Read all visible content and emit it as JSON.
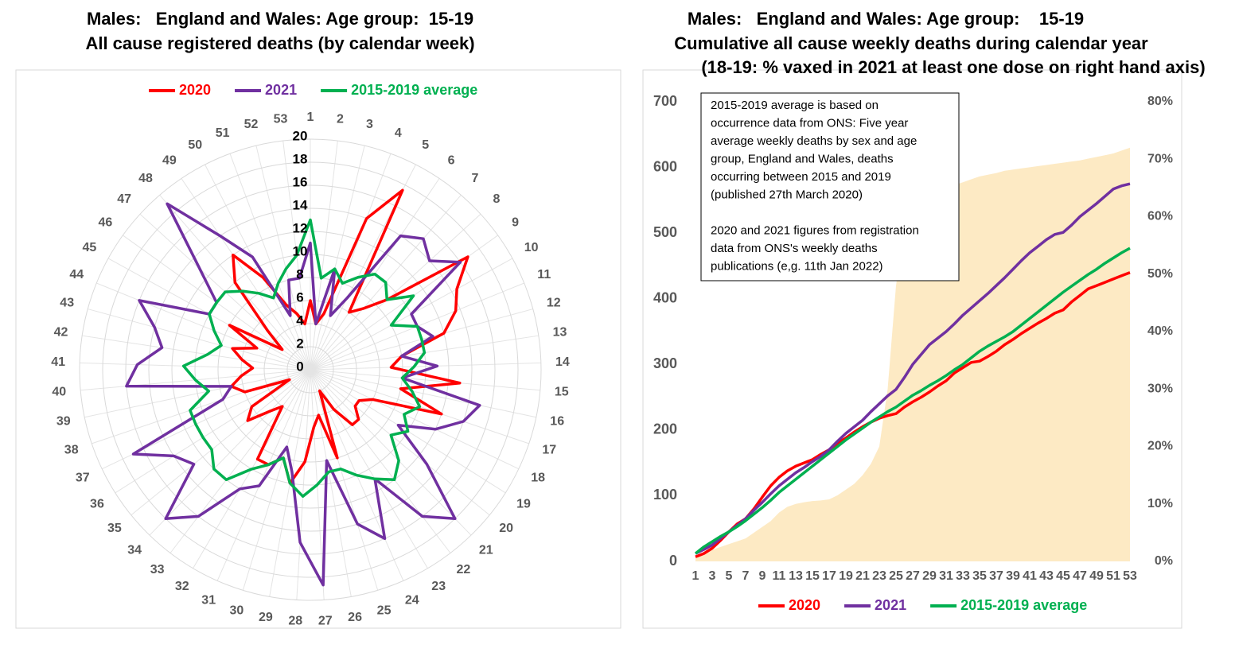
{
  "chart_data": [
    {
      "type": "radar",
      "title_lines": [
        "Males:   England and Wales: Age group:  15-19",
        "All cause registered deaths (by calendar week)"
      ],
      "categories": [
        1,
        2,
        3,
        4,
        5,
        6,
        7,
        8,
        9,
        10,
        11,
        12,
        13,
        14,
        15,
        16,
        17,
        18,
        19,
        20,
        21,
        22,
        23,
        24,
        25,
        26,
        27,
        28,
        29,
        30,
        31,
        32,
        33,
        34,
        35,
        36,
        37,
        38,
        39,
        40,
        41,
        42,
        43,
        44,
        45,
        46,
        47,
        48,
        49,
        50,
        51,
        52,
        53
      ],
      "rlim": [
        0,
        20
      ],
      "rticks": [
        0,
        2,
        4,
        6,
        8,
        10,
        12,
        14,
        16,
        18,
        20
      ],
      "grid": true,
      "series": [
        {
          "name": "2020",
          "color": "#ff0000",
          "values": [
            6,
            4,
            5,
            14,
            17.5,
            6,
            7,
            9,
            16.8,
            14.5,
            13.6,
            12,
            8,
            7,
            13,
            8,
            12,
            6,
            5,
            5,
            6,
            6,
            4,
            2,
            8,
            4,
            5,
            8,
            10,
            8,
            9,
            9,
            4,
            5,
            7,
            6,
            2,
            6,
            7,
            6,
            5,
            6,
            7,
            5,
            8,
            3,
            5,
            10,
            12,
            9,
            6,
            5,
            4
          ]
        },
        {
          "name": "2021",
          "color": "#7030a0",
          "values": [
            11,
            4,
            9,
            5,
            7,
            14,
            15,
            14,
            16,
            10,
            10,
            11,
            8,
            11,
            8,
            15,
            14,
            12,
            9,
            13,
            18,
            16,
            11,
            16,
            14,
            8,
            18.7,
            15,
            9,
            7,
            11,
            12,
            16,
            18,
            13,
            14,
            17,
            8,
            7,
            16,
            15,
            13,
            14,
            16,
            10,
            10,
            13,
            19,
            14,
            11,
            5,
            8,
            8
          ]
        },
        {
          "name": "2015-2019 average",
          "color": "#00b050",
          "values": [
            13,
            8,
            9,
            8,
            9,
            10,
            10,
            9,
            11,
            8,
            10,
            10,
            10,
            9,
            8,
            9,
            10,
            9,
            10,
            9,
            11,
            12,
            11,
            10,
            9,
            9,
            10,
            11,
            10,
            8,
            9,
            10,
            12,
            12,
            11,
            11,
            11,
            11,
            9,
            10,
            11,
            9,
            8,
            9,
            10,
            10,
            10,
            9,
            8,
            7,
            8,
            9,
            10
          ]
        }
      ]
    },
    {
      "type": "line",
      "title_lines": [
        "Males:   England and Wales: Age group:    15-19",
        "Cumulative all cause weekly deaths during calendar year",
        "(18-19: % vaxed in 2021 at least one dose on right hand axis)"
      ],
      "x": [
        1,
        2,
        3,
        4,
        5,
        6,
        7,
        8,
        9,
        10,
        11,
        12,
        13,
        14,
        15,
        16,
        17,
        18,
        19,
        20,
        21,
        22,
        23,
        24,
        25,
        26,
        27,
        28,
        29,
        30,
        31,
        32,
        33,
        34,
        35,
        36,
        37,
        38,
        39,
        40,
        41,
        42,
        43,
        44,
        45,
        46,
        47,
        48,
        49,
        50,
        51,
        52,
        53
      ],
      "xlim": [
        1,
        53
      ],
      "xticks": [
        1,
        3,
        5,
        7,
        9,
        11,
        13,
        15,
        17,
        19,
        21,
        23,
        25,
        27,
        29,
        31,
        33,
        35,
        37,
        39,
        41,
        43,
        45,
        47,
        49,
        51,
        53
      ],
      "ylim": [
        0,
        700
      ],
      "yticks": [
        0,
        100,
        200,
        300,
        400,
        500,
        600,
        700
      ],
      "y2lim": [
        0,
        80
      ],
      "y2ticks": [
        {
          "value": 0,
          "label": "0%"
        },
        {
          "value": 10,
          "label": "10%"
        },
        {
          "value": 20,
          "label": "20%"
        },
        {
          "value": 30,
          "label": "30%"
        },
        {
          "value": 40,
          "label": "40%"
        },
        {
          "value": 50,
          "label": "50%"
        },
        {
          "value": 60,
          "label": "60%"
        },
        {
          "value": 70,
          "label": "70%"
        },
        {
          "value": 80,
          "label": "80%"
        }
      ],
      "grid": false,
      "area": {
        "color": "#fdeac4",
        "axis": "y2",
        "values": [
          1,
          1.5,
          2,
          2.5,
          3,
          3.5,
          4,
          5,
          6,
          7,
          8.5,
          9.5,
          10,
          10.3,
          10.5,
          10.6,
          10.8,
          11.5,
          12.5,
          13.5,
          15,
          17,
          20,
          30,
          48,
          58,
          62,
          63,
          64,
          64.5,
          65,
          65.5,
          66,
          66.5,
          67,
          67.3,
          67.6,
          68,
          68.2,
          68.4,
          68.6,
          68.8,
          69,
          69.2,
          69.4,
          69.6,
          69.8,
          70.1,
          70.4,
          70.7,
          71,
          71.5,
          72
        ]
      },
      "series": [
        {
          "name": "2020",
          "color": "#ff0000",
          "values": [
            7,
            12,
            20,
            32,
            45,
            57,
            65,
            80,
            98,
            115,
            128,
            138,
            145,
            150,
            155,
            163,
            170,
            180,
            188,
            197,
            205,
            212,
            218,
            222,
            225,
            235,
            243,
            250,
            258,
            267,
            275,
            287,
            295,
            303,
            305,
            312,
            320,
            330,
            338,
            347,
            355,
            363,
            370,
            378,
            383,
            395,
            405,
            415,
            420,
            425,
            430,
            435,
            440
          ]
        },
        {
          "name": "2021",
          "color": "#7030a0",
          "values": [
            12,
            18,
            25,
            35,
            45,
            55,
            65,
            78,
            90,
            103,
            115,
            125,
            135,
            143,
            152,
            160,
            170,
            183,
            195,
            205,
            215,
            228,
            240,
            252,
            262,
            280,
            300,
            315,
            330,
            340,
            350,
            362,
            375,
            386,
            397,
            408,
            420,
            432,
            445,
            458,
            470,
            480,
            490,
            498,
            501,
            512,
            525,
            535,
            545,
            556,
            567,
            572,
            575
          ]
        },
        {
          "name": "2015-2019 average",
          "color": "#00b050",
          "values": [
            12,
            22,
            30,
            38,
            45,
            53,
            62,
            72,
            82,
            93,
            105,
            115,
            125,
            135,
            145,
            155,
            165,
            175,
            185,
            194,
            203,
            212,
            220,
            228,
            235,
            244,
            253,
            260,
            268,
            275,
            283,
            292,
            300,
            310,
            320,
            328,
            335,
            342,
            350,
            360,
            370,
            380,
            390,
            400,
            410,
            419,
            428,
            437,
            445,
            454,
            462,
            470,
            477
          ]
        }
      ],
      "note": [
        "2015-2019 average is based on",
        "occurrence data from ONS: Five year",
        "average weekly deaths by sex and age",
        "group, England and Wales, deaths",
        "occurring between 2015 and 2019",
        "(published 27th March 2020)",
        "2020 and 2021 figures from registration",
        "data from ONS's weekly deaths",
        "publications (e,g. 11th Jan 2022)"
      ]
    }
  ]
}
